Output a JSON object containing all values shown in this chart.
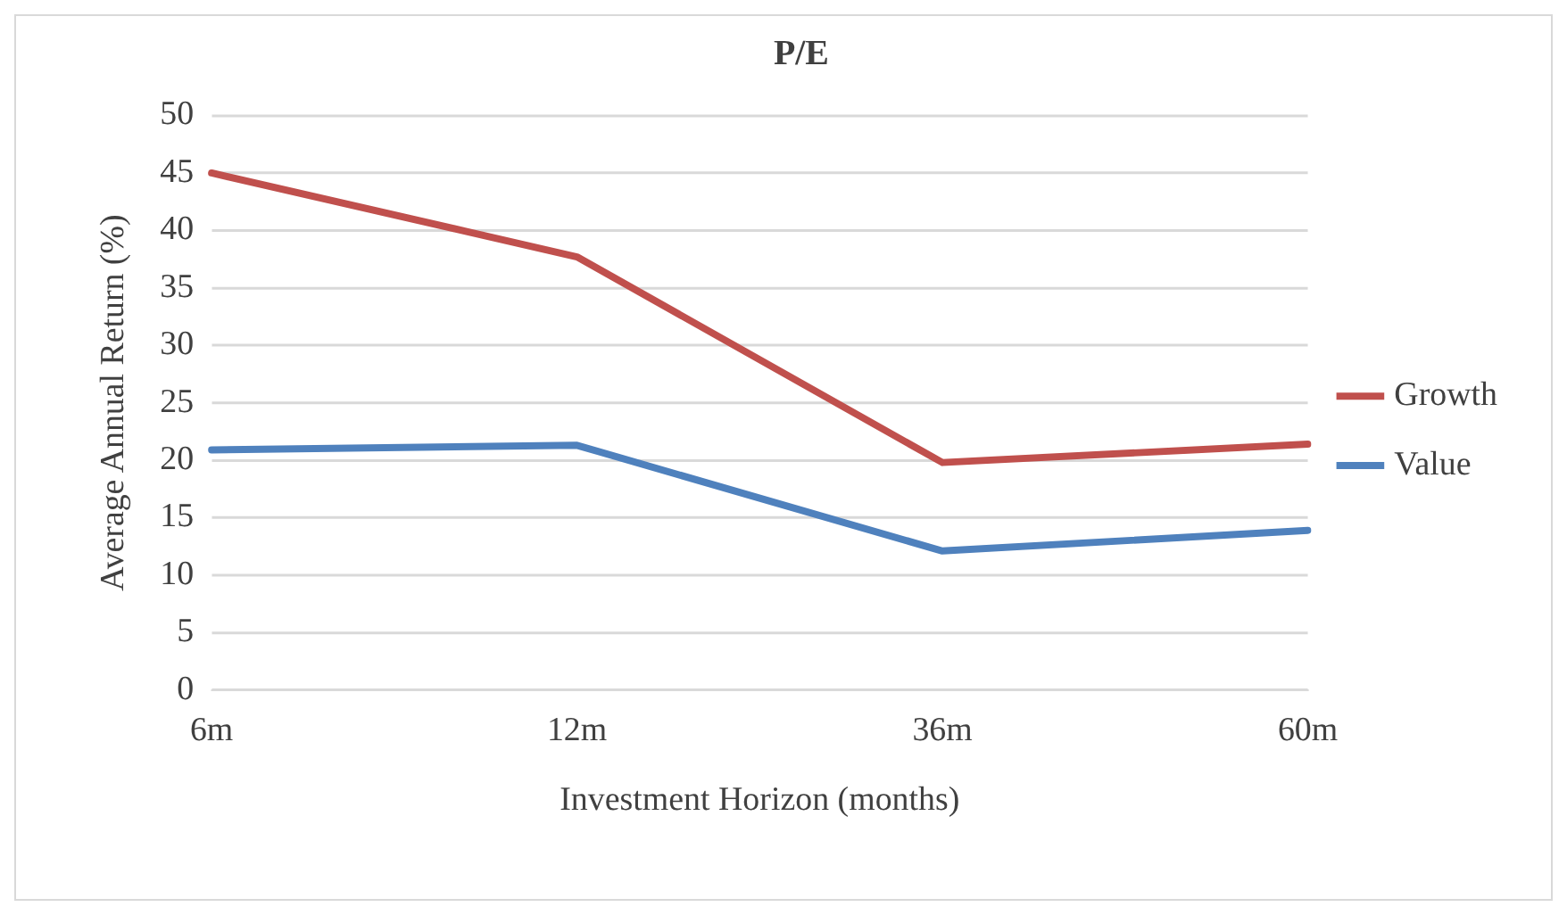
{
  "chart_data": {
    "type": "line",
    "title": "P/E",
    "xlabel": "Investment Horizon (months)",
    "ylabel": "Average Annual Return (%)",
    "categories": [
      "6m",
      "12m",
      "36m",
      "60m"
    ],
    "series": [
      {
        "name": "Growth",
        "color": "#c0504d",
        "values": [
          45,
          37.7,
          19.8,
          21.4
        ]
      },
      {
        "name": "Value",
        "color": "#4f81bd",
        "values": [
          20.9,
          21.3,
          12.1,
          13.9
        ]
      }
    ],
    "ylim": [
      0,
      50
    ],
    "yticks": [
      0,
      5,
      10,
      15,
      20,
      25,
      30,
      35,
      40,
      45,
      50
    ],
    "grid": "y",
    "legend": "right",
    "marker": "none",
    "line_style": "solid"
  }
}
